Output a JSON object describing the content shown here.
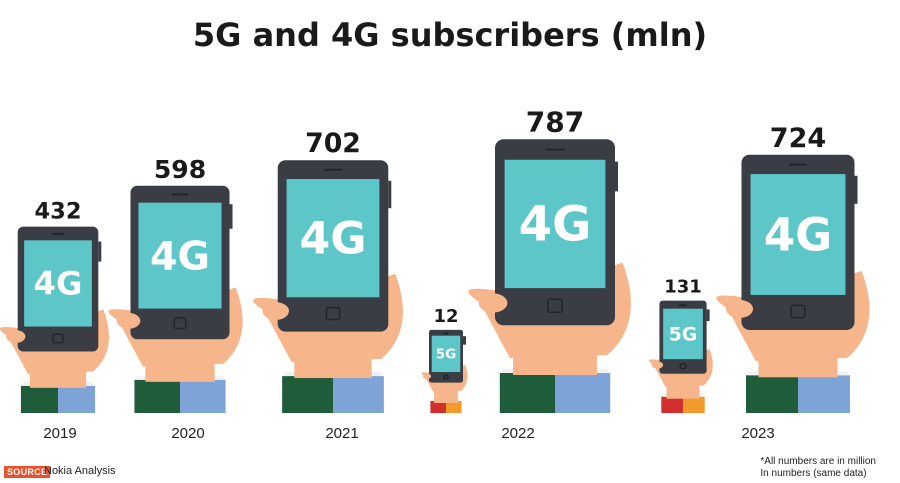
{
  "chart_data": {
    "type": "bar",
    "title": "5G and 4G subscribers (mln)",
    "categories": [
      "2019",
      "2020",
      "2021",
      "2022",
      "2023"
    ],
    "series": [
      {
        "name": "4G",
        "values": [
          432,
          598,
          702,
          787,
          724
        ]
      },
      {
        "name": "5G",
        "values": [
          null,
          null,
          12,
          12,
          131
        ]
      }
    ],
    "bars": [
      {
        "year": "2019",
        "label": "4G",
        "value": 432
      },
      {
        "year": "2020",
        "label": "4G",
        "value": 598
      },
      {
        "year": "2021",
        "label": "4G",
        "value": 702
      },
      {
        "year": "2022",
        "label": "5G",
        "value": 12
      },
      {
        "year": "2022",
        "label": "4G",
        "value": 787
      },
      {
        "year": "2023",
        "label": "5G",
        "value": 131
      },
      {
        "year": "2023",
        "label": "4G",
        "value": 724
      }
    ]
  },
  "source": {
    "label": "SOURCE",
    "text": "Nokia Analysis"
  },
  "note": {
    "line1": "*All numbers are in million",
    "line2": "In numbers (same data)"
  },
  "colors": {
    "skin": "#f6b58a",
    "phone": "#3a3d44",
    "screen": "#5cc6c9",
    "sleeve_green": "#1f5c39",
    "sleeve_blue": "#7ea3d6",
    "cuff_red": "#d32f2f",
    "cuff_orange": "#f39a2c"
  }
}
